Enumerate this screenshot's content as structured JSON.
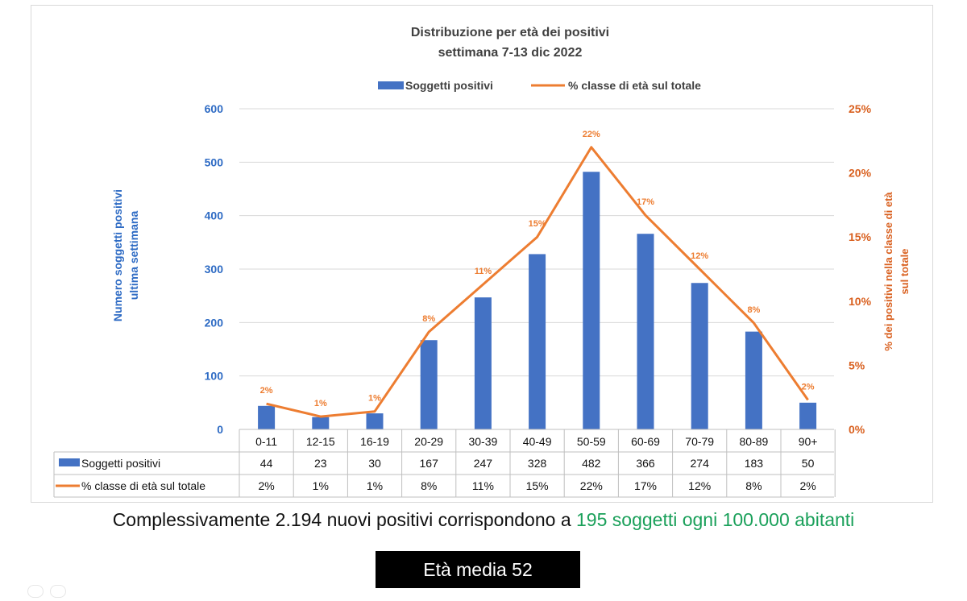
{
  "chart_data": {
    "type": "bar",
    "title": "Distribuzione per età dei positivi",
    "subtitle": "settimana 7-13 dic 2022",
    "categories": [
      "0-11",
      "12-15",
      "16-19",
      "20-29",
      "30-39",
      "40-49",
      "50-59",
      "60-69",
      "70-79",
      "80-89",
      "90+"
    ],
    "series": [
      {
        "name": "Soggetti positivi",
        "type": "bar",
        "axis": "left",
        "color": "#4472c4",
        "values": [
          44,
          23,
          30,
          167,
          247,
          328,
          482,
          366,
          274,
          183,
          50
        ]
      },
      {
        "name": "% classe di età sul totale",
        "type": "line",
        "axis": "right",
        "color": "#ed7d31",
        "values": [
          2.0,
          1.0,
          1.4,
          7.6,
          11.3,
          15.0,
          22.0,
          16.7,
          12.5,
          8.3,
          2.3
        ],
        "labels": [
          "2%",
          "1%",
          "1%",
          "8%",
          "11%",
          "15%",
          "22%",
          "17%",
          "12%",
          "8%",
          "2%"
        ]
      }
    ],
    "ylabel": "Numero soggetti positivi ultima settimana",
    "ylabel_lines": [
      "Numero soggetti positivi",
      "ultima settimana"
    ],
    "y2label": "% dei positivi nella classe di età sul totale",
    "y2label_lines": [
      "% dei positivi nella classe di età",
      "sul totale"
    ],
    "ylim": [
      0,
      600
    ],
    "yticks": [
      0,
      100,
      200,
      300,
      400,
      500,
      600
    ],
    "y2lim": [
      0,
      25
    ],
    "y2ticks": [
      "0%",
      "5%",
      "10%",
      "15%",
      "20%",
      "25%"
    ],
    "grid": true,
    "legend": "top",
    "table": {
      "rows": [
        {
          "label": "Soggetti positivi",
          "values": [
            "44",
            "23",
            "30",
            "167",
            "247",
            "328",
            "482",
            "366",
            "274",
            "183",
            "50"
          ]
        },
        {
          "label": "% classe di età sul totale",
          "values": [
            "2%",
            "1%",
            "1%",
            "8%",
            "11%",
            "15%",
            "22%",
            "17%",
            "12%",
            "8%",
            "2%"
          ]
        }
      ]
    },
    "colors": {
      "bar": "#4472c4",
      "line": "#ed7d31",
      "left_axis": "#2e6bc4",
      "right_axis": "#d9601f",
      "title": "#404040"
    }
  },
  "summary": {
    "text": "Complessivamente 2.194 nuovi positivi corrispondono a ",
    "highlight": "195 soggetti ogni 100.000 abitanti"
  },
  "age_box": "Età media 52"
}
